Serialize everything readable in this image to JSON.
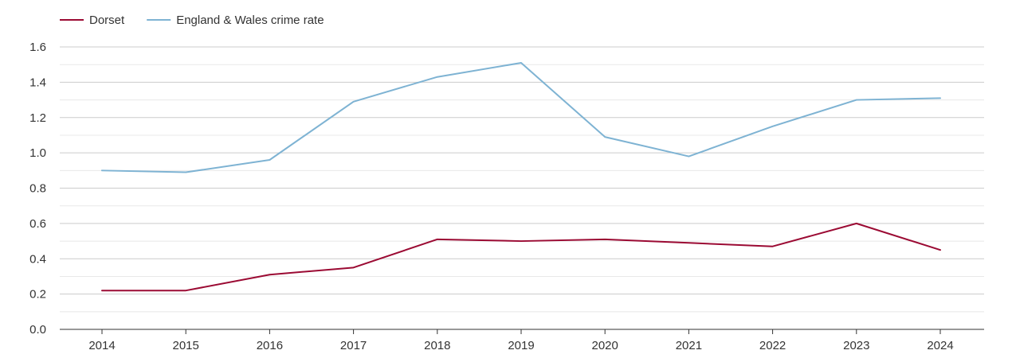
{
  "chart_data": {
    "type": "line",
    "title": "",
    "xlabel": "",
    "ylabel": "",
    "categories": [
      "2014",
      "2015",
      "2016",
      "2017",
      "2018",
      "2019",
      "2020",
      "2021",
      "2022",
      "2023",
      "2024"
    ],
    "ylim": [
      0,
      1.6
    ],
    "y_ticks": [
      "0.0",
      "0.2",
      "0.4",
      "0.6",
      "0.8",
      "1.0",
      "1.2",
      "1.4",
      "1.6"
    ],
    "grid": true,
    "legend_position": "top-left",
    "series": [
      {
        "name": "Dorset",
        "color": "#9b0a33",
        "values": [
          0.22,
          0.22,
          0.31,
          0.35,
          0.51,
          0.5,
          0.51,
          0.49,
          0.47,
          0.6,
          0.45
        ]
      },
      {
        "name": "England & Wales crime rate",
        "color": "#7eb3d3",
        "values": [
          0.9,
          0.89,
          0.96,
          1.29,
          1.43,
          1.51,
          1.09,
          0.98,
          1.15,
          1.3,
          1.31
        ]
      }
    ]
  }
}
